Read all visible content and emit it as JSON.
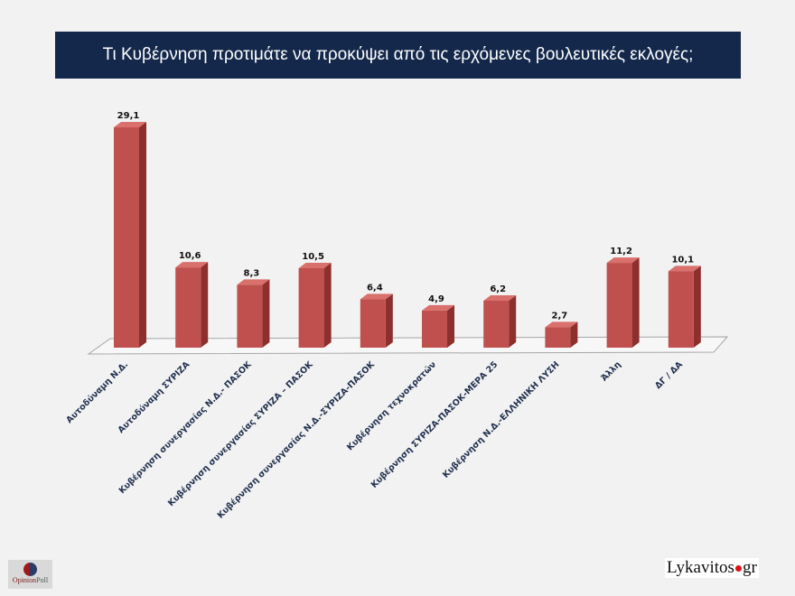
{
  "chart_data": {
    "type": "bar",
    "title": "Τι Κυβέρνηση προτιμάτε να προκύψει από τις ερχόμενες βουλευτικές εκλογές;",
    "categories": [
      "Αυτοδύναμη Ν.Δ.",
      "Αυτοδύναμη ΣΥΡΙΖΑ",
      "Κυβέρνηση συνεργασίας Ν.Δ.- ΠΑΣΟΚ",
      "Κυβέρνηση συνεργασίας ΣΥΡΙΖΑ – ΠΑΣΟΚ",
      "Κυβέρνηση συνεργασίας Ν.Δ.-ΣΥΡΙΖΑ-ΠΑΣΟΚ",
      "Κυβέρνηση τεχνοκρατών",
      "Κυβέρνηση ΣΥΡΙΖΑ-ΠΑΣΟΚ-ΜΕΡΑ 25",
      "Κυβέρνηση Ν.Δ.-ΕΛΛΗΝΙΚΗ ΛΥΣΗ",
      "Άλλη",
      "ΔΓ / ΔΑ"
    ],
    "values": [
      29.1,
      10.6,
      8.3,
      10.5,
      6.4,
      4.9,
      6.2,
      2.7,
      11.2,
      10.1
    ],
    "data_labels": [
      "29,1",
      "10,6",
      "8,3",
      "10,5",
      "6,4",
      "4,9",
      "6,2",
      "2,7",
      "11,2",
      "10,1"
    ],
    "xlabel": "",
    "ylabel": "",
    "ylim": [
      0,
      29.1
    ],
    "grid": false,
    "style": "3d",
    "colors": {
      "bar": "#c0504d",
      "bar_side": "#8c2f2d",
      "bar_top": "#d9706c",
      "title_bg": "#14284b"
    }
  },
  "logos": {
    "left": "OpinionPoll",
    "left_a": "Opinion",
    "left_b": "Poll",
    "right": "Lykavitos.gr",
    "right_a": "Lykavitos",
    "right_b": "gr"
  }
}
